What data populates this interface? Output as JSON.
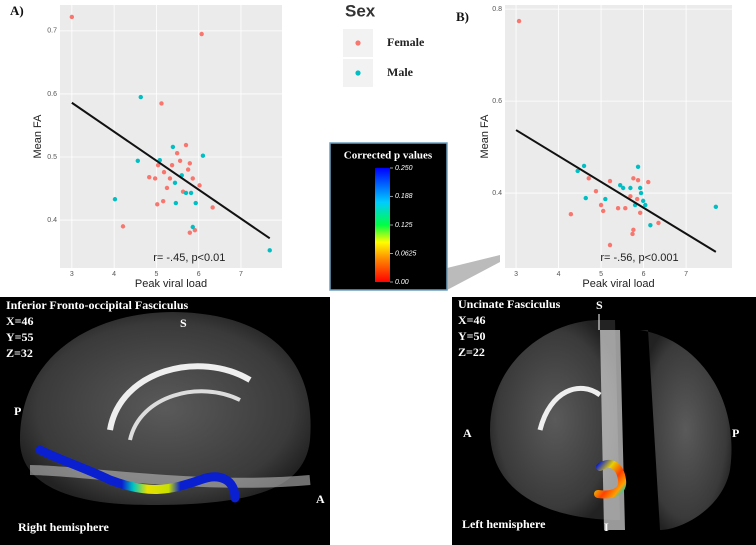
{
  "chart_data": [
    {
      "type": "scatter",
      "panel_label": "A)",
      "xlabel": "Peak viral load",
      "ylabel": "Mean FA",
      "legend_title": "Sex",
      "annotation": "r= -.45, p<0.01",
      "xlim": [
        2.72,
        7.97
      ],
      "ylim": [
        0.324,
        0.741
      ],
      "xticks": [
        3,
        4,
        5,
        6,
        7
      ],
      "yticks": [
        0.4,
        0.5,
        0.6,
        0.7
      ],
      "grid": true,
      "series": [
        {
          "name": "Female",
          "color": "#F8766D",
          "x": [
            3.0,
            6.07,
            5.12,
            4.21,
            4.83,
            4.97,
            5.04,
            5.18,
            5.32,
            5.37,
            5.49,
            5.56,
            5.7,
            5.79,
            5.86,
            6.02,
            6.33,
            5.79,
            5.91,
            5.02,
            5.16,
            5.25,
            5.63,
            5.75
          ],
          "values": [
            0.722,
            0.695,
            0.585,
            0.39,
            0.468,
            0.466,
            0.487,
            0.476,
            0.466,
            0.487,
            0.506,
            0.494,
            0.519,
            0.49,
            0.466,
            0.455,
            0.42,
            0.38,
            0.384,
            0.425,
            0.43,
            0.451,
            0.445,
            0.48
          ]
        },
        {
          "name": "Male",
          "color": "#00BFC4",
          "x": [
            4.63,
            4.02,
            4.56,
            5.08,
            5.39,
            5.44,
            5.6,
            5.7,
            5.82,
            5.93,
            6.1,
            5.86,
            7.68,
            5.46
          ],
          "values": [
            0.595,
            0.433,
            0.494,
            0.495,
            0.516,
            0.459,
            0.471,
            0.443,
            0.443,
            0.427,
            0.502,
            0.389,
            0.352,
            0.427
          ]
        }
      ],
      "fit_line": {
        "x": [
          3.0,
          7.68
        ],
        "values": [
          0.586,
          0.371
        ]
      }
    },
    {
      "type": "scatter",
      "panel_label": "B)",
      "xlabel": "Peak viral load",
      "ylabel": "Mean FA",
      "annotation": "r= -.56, p<0.001",
      "xlim": [
        2.74,
        8.08
      ],
      "ylim": [
        0.237,
        0.809
      ],
      "xticks": [
        3,
        4,
        5,
        6,
        7
      ],
      "yticks": [
        0.4,
        0.6,
        0.8
      ],
      "grid": true,
      "series": [
        {
          "color": "#F8766D",
          "x": [
            3.07,
            4.29,
            4.71,
            4.88,
            5.0,
            5.05,
            5.21,
            5.21,
            5.4,
            5.57,
            5.69,
            5.76,
            5.87,
            5.85,
            5.92,
            5.76,
            5.74,
            6.11,
            6.35
          ],
          "values": [
            0.774,
            0.354,
            0.432,
            0.404,
            0.374,
            0.361,
            0.426,
            0.287,
            0.367,
            0.367,
            0.393,
            0.432,
            0.428,
            0.387,
            0.357,
            0.32,
            0.311,
            0.424,
            0.335
          ]
        },
        {
          "color": "#00BFC4",
          "x": [
            4.6,
            4.64,
            4.45,
            5.1,
            5.45,
            5.52,
            5.69,
            5.8,
            5.87,
            5.92,
            5.99,
            6.04,
            6.16,
            5.94,
            7.7
          ],
          "values": [
            0.459,
            0.389,
            0.448,
            0.387,
            0.417,
            0.411,
            0.411,
            0.374,
            0.457,
            0.411,
            0.383,
            0.374,
            0.33,
            0.4,
            0.37
          ]
        }
      ],
      "fit_line": {
        "x": [
          3.0,
          7.7
        ],
        "values": [
          0.537,
          0.272
        ]
      }
    }
  ],
  "colorbar": {
    "title": "Corrected p values",
    "range": [
      0,
      0.25
    ],
    "ticks": [
      {
        "value": 0.25,
        "label": "0.250"
      },
      {
        "value": 0.188,
        "label": "0.188"
      },
      {
        "value": 0.125,
        "label": "0.125"
      },
      {
        "value": 0.0625,
        "label": "0.0625"
      },
      {
        "value": 0,
        "label": "0.00"
      }
    ]
  },
  "brain_panels": [
    {
      "title": "Inferior Fronto-occipital Fasciculus",
      "coords": [
        "X=46",
        "Y=55",
        "Z=32"
      ],
      "orient": [
        "S",
        "P",
        "A"
      ],
      "hemisphere": "Right hemisphere"
    },
    {
      "title": "Uncinate Fasciculus",
      "coords": [
        "X=46",
        "Y=50",
        "Z=22"
      ],
      "orient": [
        "S",
        "A",
        "P",
        "I"
      ],
      "hemisphere": "Left hemisphere"
    }
  ]
}
